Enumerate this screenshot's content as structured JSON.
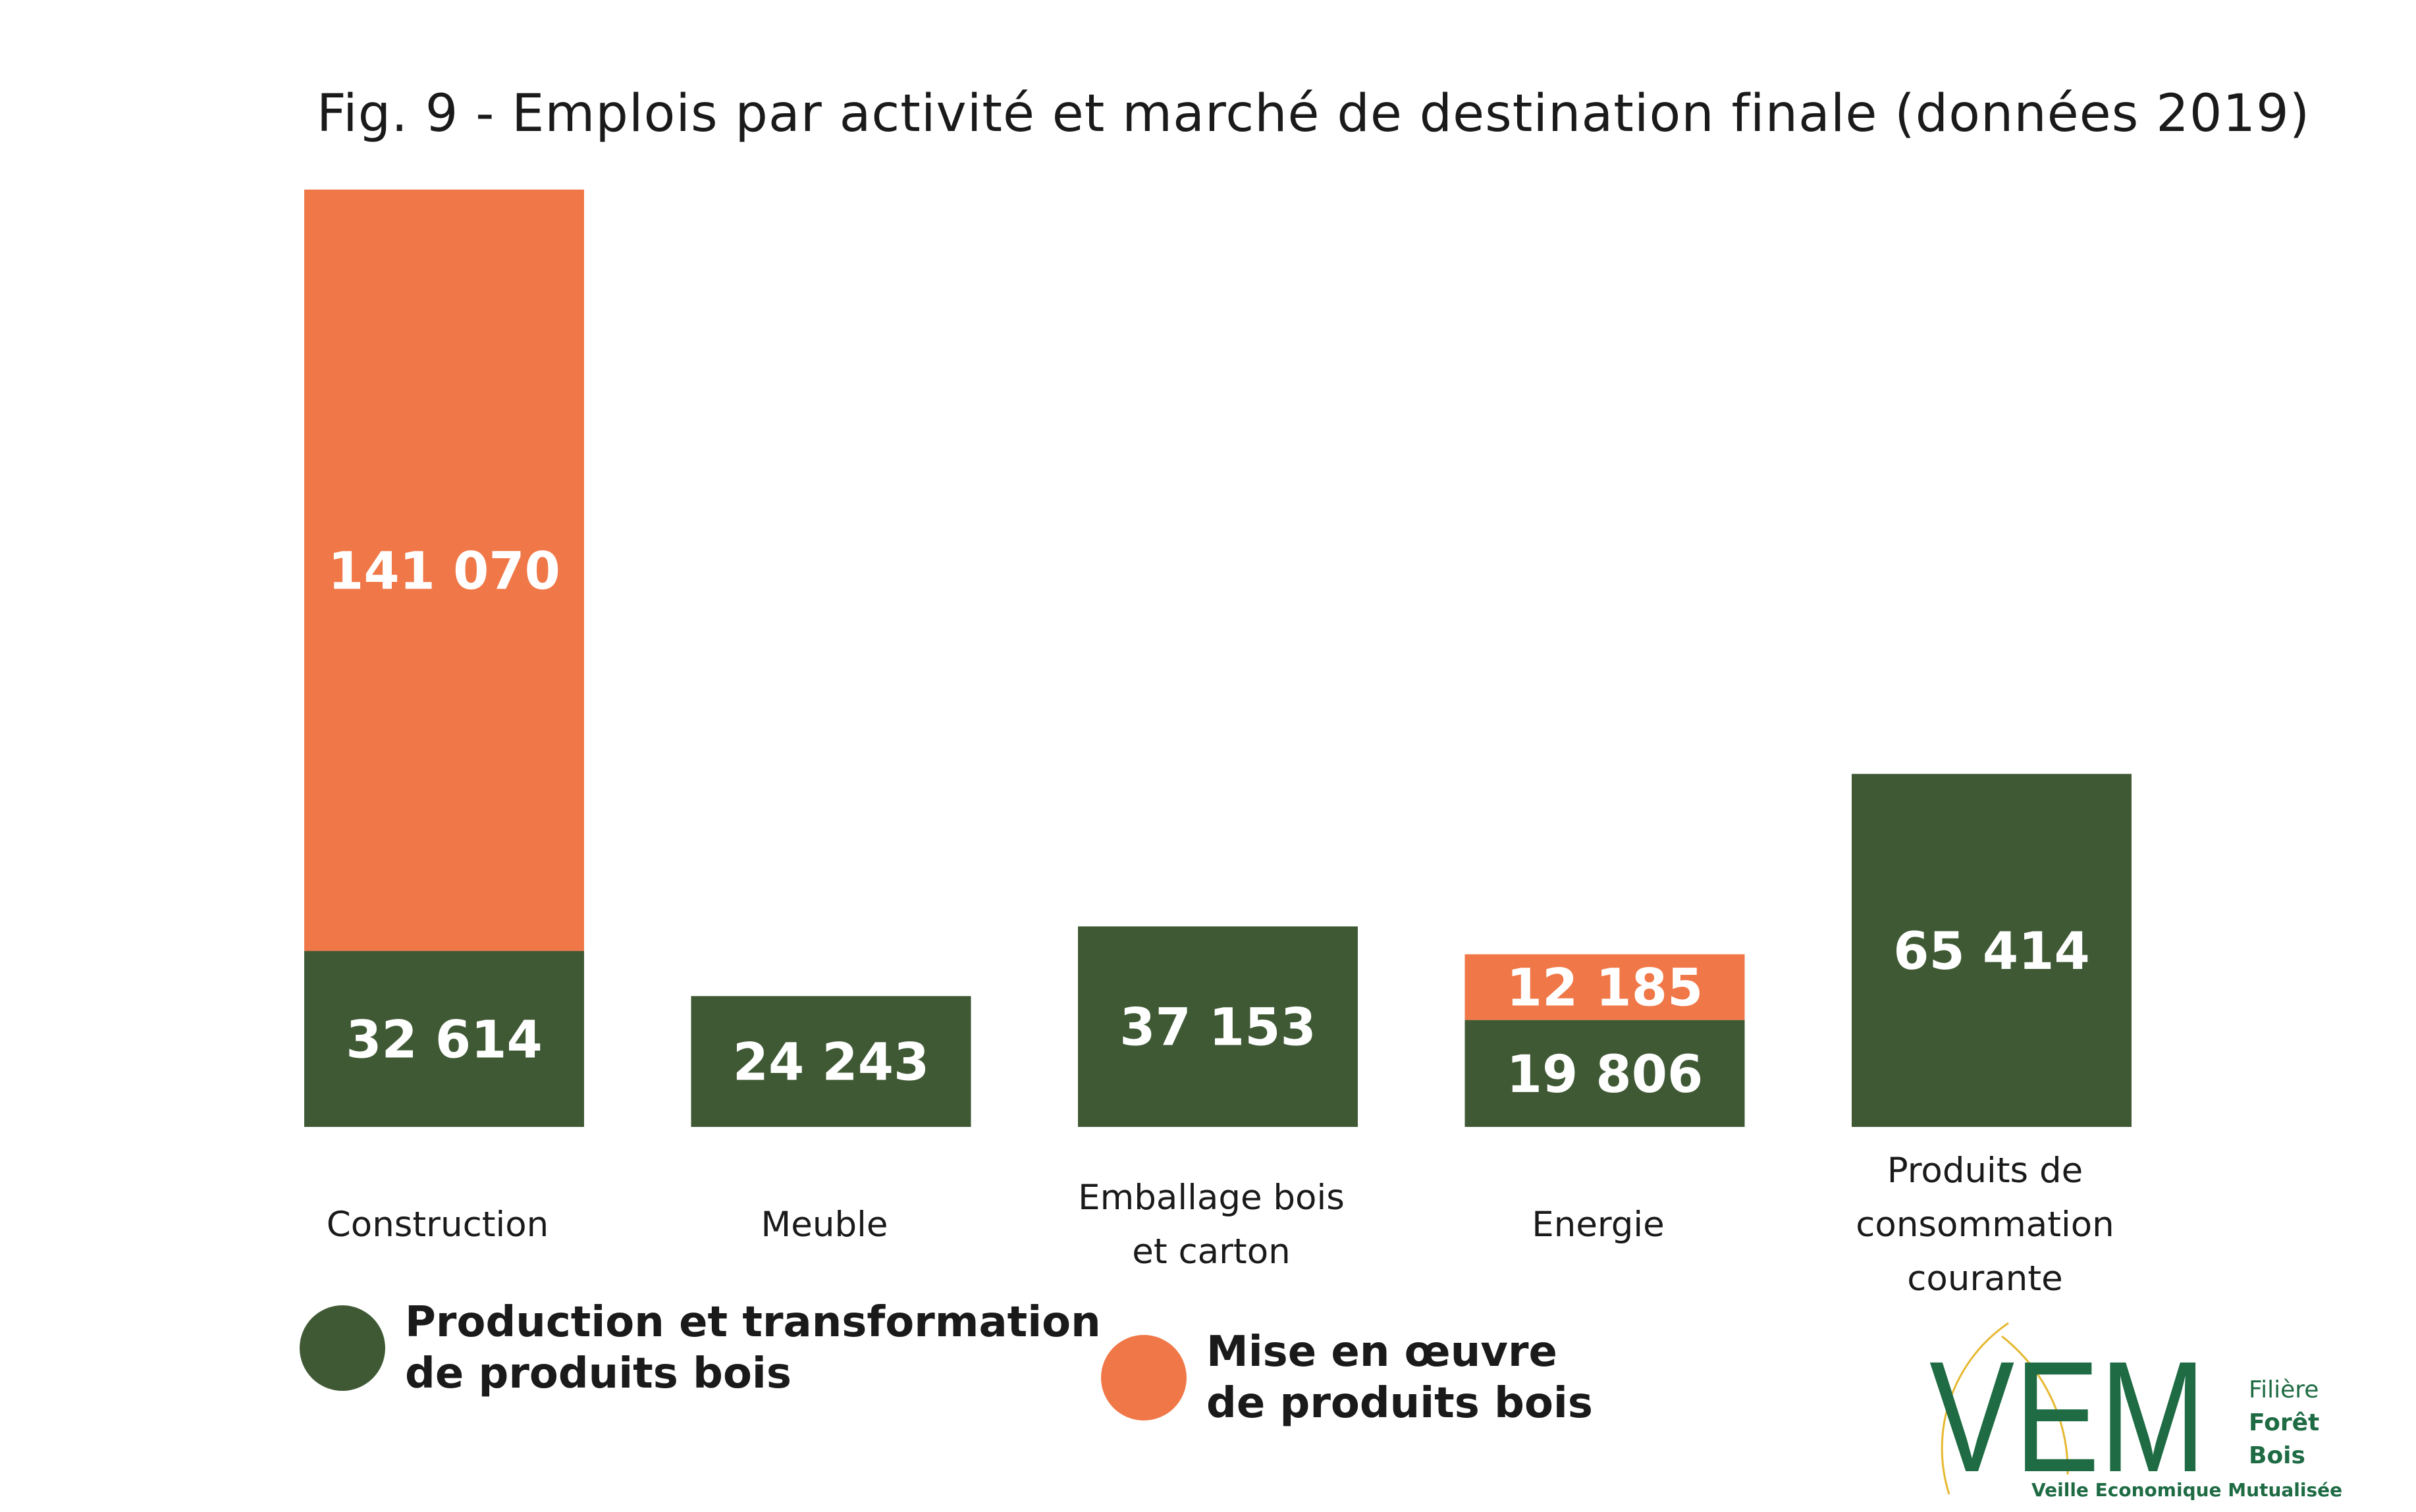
{
  "title": "Fig. 9 - Emplois par activité et marché de destination finale (données 2019)",
  "colors": {
    "production": "#3f5935",
    "mise": "#f07747",
    "logo_green": "#1e6b44",
    "logo_yellow": "#e6b830"
  },
  "chart_data": {
    "type": "bar",
    "stacked": true,
    "title": "Fig. 9 - Emplois par activité et marché de destination finale (données 2019)",
    "categories": [
      [
        "Construction"
      ],
      [
        "Meuble"
      ],
      [
        "Emballage bois",
        "et carton"
      ],
      [
        "Energie"
      ],
      [
        "Produits de",
        "consommation",
        "courante"
      ]
    ],
    "series": [
      {
        "name": "Production et transformation de produits bois",
        "values": [
          32614,
          24243,
          37153,
          19806,
          65414
        ],
        "labels": [
          "32 614",
          "24 243",
          "37 153",
          "19 806",
          "65 414"
        ]
      },
      {
        "name": "Mise en œuvre de produits bois",
        "values": [
          141070,
          0,
          0,
          12185,
          0
        ],
        "labels": [
          "141 070",
          "",
          "",
          "12 185",
          ""
        ]
      }
    ],
    "legend": "bottom",
    "grid": false
  },
  "legend": {
    "production": "Production et transformation\nde produits bois",
    "mise": "Mise en œuvre\nde produits bois"
  },
  "logo": {
    "letters": "VEM",
    "side_line1": "Filière",
    "side_line2": "Forêt",
    "side_line3": "Bois",
    "tagline": "Veille Economique Mutualisée"
  }
}
